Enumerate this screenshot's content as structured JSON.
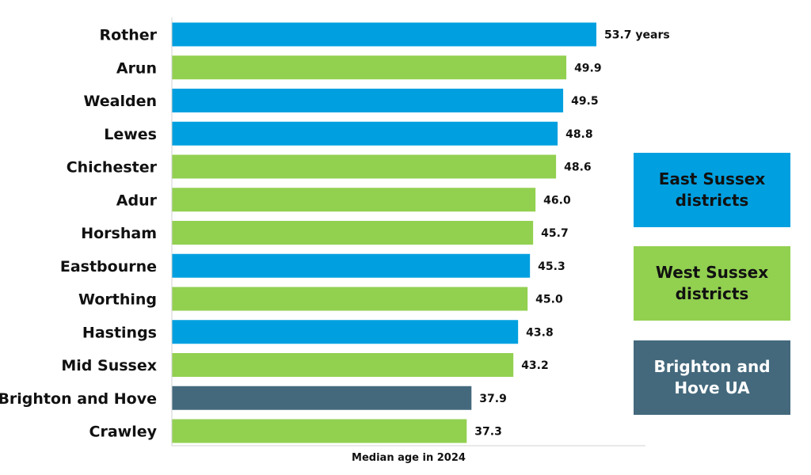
{
  "chart_data": {
    "type": "bar",
    "orientation": "horizontal",
    "xlabel": "Median age in 2024",
    "ylabel": "",
    "xlim": [
      0,
      60
    ],
    "grid": false,
    "value_suffix_first": " years",
    "categories": [
      "Rother",
      "Arun",
      "Wealden",
      "Lewes",
      "Chichester",
      "Adur",
      "Horsham",
      "Eastbourne",
      "Worthing",
      "Hastings",
      "Mid Sussex",
      "Brighton and Hove",
      "Crawley"
    ],
    "values": [
      53.7,
      49.9,
      49.5,
      48.8,
      48.6,
      46.0,
      45.7,
      45.3,
      45.0,
      43.8,
      43.2,
      37.9,
      37.3
    ],
    "groups": [
      "east",
      "west",
      "east",
      "east",
      "west",
      "west",
      "west",
      "east",
      "west",
      "east",
      "west",
      "bh",
      "west"
    ],
    "legend_position": "right",
    "legend": [
      {
        "key": "east",
        "label": "East Sussex districts",
        "color": "#00a0e0",
        "text_color": "#111111"
      },
      {
        "key": "west",
        "label": "West Sussex districts",
        "color": "#92d050",
        "text_color": "#111111"
      },
      {
        "key": "bh",
        "label": "Brighton and Hove UA",
        "color": "#44697d",
        "text_color": "#ffffff"
      }
    ]
  }
}
